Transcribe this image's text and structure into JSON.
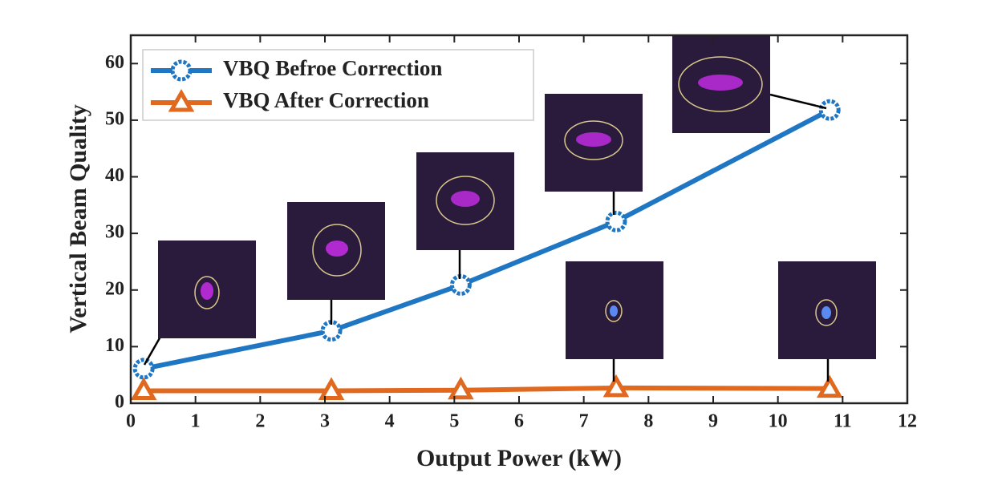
{
  "chart_data": {
    "type": "line",
    "x_label": "Output Power (kW)",
    "y_label": "Vertical Beam Quality",
    "series": [
      {
        "name": "VBQ Befroe Correction",
        "color": "#1f77c4",
        "marker": "circle",
        "x": [
          0.2,
          3.1,
          5.1,
          7.5,
          10.8
        ],
        "values": [
          6.1,
          12.8,
          20.9,
          32.1,
          51.8
        ]
      },
      {
        "name": "VBQ After Correction",
        "color": "#e0691f",
        "marker": "triangle",
        "x": [
          0.2,
          3.1,
          5.1,
          7.5,
          10.8
        ],
        "values": [
          2.2,
          2.2,
          2.3,
          2.7,
          2.6
        ]
      }
    ],
    "xlim": [
      0,
      12
    ],
    "xticks": [
      0,
      1,
      2,
      3,
      4,
      5,
      6,
      7,
      8,
      9,
      10,
      11,
      12
    ],
    "ylim": [
      0,
      65
    ],
    "yticks": [
      0,
      10,
      20,
      30,
      40,
      50,
      60
    ],
    "legend": "upper-left",
    "grid": false
  }
}
